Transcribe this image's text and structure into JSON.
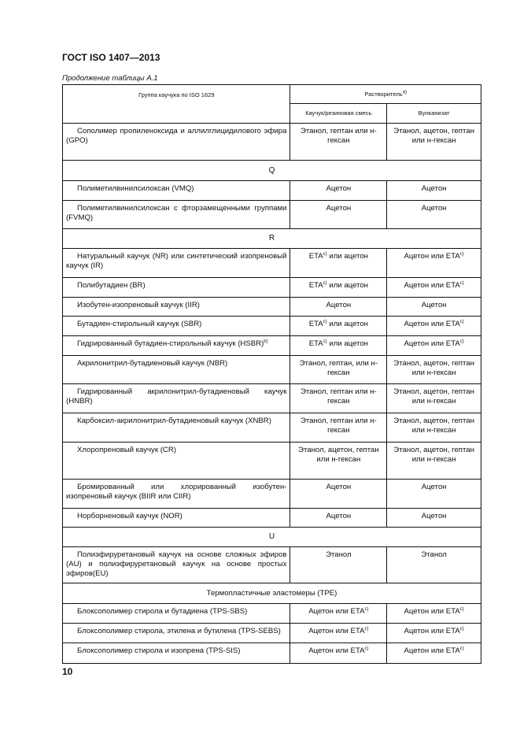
{
  "header": "ГОСТ ISO 1407—2013",
  "caption": "Продолжение таблицы А.1",
  "page_number": "10",
  "table": {
    "col_group": "Группа каучука по ISO 1629",
    "col_solvent": "Растворитель",
    "col_solvent_sup": "a)",
    "col_raw": "Каучук/резиновая смесь",
    "col_vulc": "Вулканизат",
    "rows": [
      {
        "type": "row",
        "h": 47,
        "name": "Сополимер пропиленоксида и аллилглицидилового эфира (GPO)",
        "a": {
          "pre": "Этанол, гептан или н-гексан"
        },
        "b": {
          "pre": "Этанол, ацетон, гептан или н-гексан"
        }
      },
      {
        "type": "group",
        "h": 26,
        "label": "Q"
      },
      {
        "type": "row",
        "h": 25,
        "name": "Полиметилвинилсилоксан (VMQ)",
        "a": {
          "pre": "Ацетон"
        },
        "b": {
          "pre": "Ацетон"
        }
      },
      {
        "type": "row",
        "h": 36,
        "name": "Полиметилвинилсилоксан с фторзамещенными группами (FVMQ)",
        "a": {
          "pre": "Ацетон"
        },
        "b": {
          "pre": "Ацетон"
        }
      },
      {
        "type": "group",
        "h": 25,
        "label": "R"
      },
      {
        "type": "row",
        "h": 37,
        "name": "Натуральный каучук (NR) или синтетический изопреновый каучук (IR)",
        "a": {
          "pre": "ETA",
          "sup": "c)",
          "post": " или ацетон"
        },
        "b": {
          "pre": "Ацетон или ETA",
          "sup": "c)"
        }
      },
      {
        "type": "row",
        "h": 25,
        "name": "Полибутадиен (BR)",
        "a": {
          "pre": "ETA",
          "sup": "c)",
          "post": " или ацетон"
        },
        "b": {
          "pre": "Ацетон или ETA",
          "sup": "c)"
        }
      },
      {
        "type": "row",
        "h": 24,
        "name": "Изобутен-изопреновый каучук (IIR)",
        "a": {
          "pre": "Ацетон"
        },
        "b": {
          "pre": "Ацетон"
        }
      },
      {
        "type": "row",
        "h": 25,
        "name": "Бутадиен-стирольный каучук (SBR)",
        "a": {
          "pre": "ETA",
          "sup": "c)",
          "post": " или ацетон"
        },
        "b": {
          "pre": "Ацетон или ETA",
          "sup": "c)"
        }
      },
      {
        "type": "row",
        "h": 25,
        "name": "Гидрированный бутадиен-стирольный каучук (HSBR)",
        "name_sup": "b)",
        "a": {
          "pre": "ETA",
          "sup": "c)",
          "post": " или ацетон"
        },
        "b": {
          "pre": "Ацетон или ETA",
          "sup": "c)"
        }
      },
      {
        "type": "row",
        "h": 36,
        "name": "Акрилонитрил-бутадиеновый каучук (NBR)",
        "a": {
          "pre": "Этанол, гептан, или н-гексан"
        },
        "b": {
          "pre": "Этанол, ацетон, гептан или н-гексан"
        }
      },
      {
        "type": "row",
        "h": 37,
        "name": "Гидрированный акрилонитрил-бутадиеновый каучук (HNBR)",
        "a": {
          "pre": "Этанол, гептан или н-гексан"
        },
        "b": {
          "pre": "Этанол, ацетон, гептан или н-гексан"
        }
      },
      {
        "type": "row",
        "h": 37,
        "name": "Карбоксил-акрилонитрил-бутадиеновый каучук (XNBR)",
        "a": {
          "pre": "Этанол, гептан или н-гексан"
        },
        "b": {
          "pre": "Этанол, ацетон, гептан или н-гексан"
        }
      },
      {
        "type": "row",
        "h": 47,
        "name": "Хлоропреновый каучук (CR)",
        "a": {
          "pre": "Этанол, ацетон, гептан или н-гексан"
        },
        "b": {
          "pre": "Этанол, ацетон, гептан или н-гексан"
        }
      },
      {
        "type": "row",
        "h": 37,
        "name": "Бромированный или хлорированный изобутен-изопреновый каучук (BIIR или CIIR)",
        "a": {
          "pre": "Ацетон"
        },
        "b": {
          "pre": "Ацетон"
        }
      },
      {
        "type": "row",
        "h": 24,
        "name": "Норборненовый каучук (NOR)",
        "a": {
          "pre": "Ацетон"
        },
        "b": {
          "pre": "Ацетон"
        }
      },
      {
        "type": "group",
        "h": 25,
        "label": "U"
      },
      {
        "type": "row",
        "h": 46,
        "name": "Полиэфируретановый каучук на основе сложных эфиров (AU) и полиэфируретановый каучук на основе простых эфиров(EU)",
        "a": {
          "pre": "Этанол"
        },
        "b": {
          "pre": "Этанол"
        }
      },
      {
        "type": "group",
        "h": 26,
        "label": "Термопластичные эластомеры (TPE)",
        "big": true
      },
      {
        "type": "row",
        "h": 25,
        "name": "Блоксополимер стирола и бутадиена (TPS-SBS)",
        "a": {
          "pre": "Ацетон или ETA",
          "sup": "c)"
        },
        "b": {
          "pre": "Ацетон или ETA",
          "sup": "c)"
        }
      },
      {
        "type": "row",
        "h": 25,
        "name": "Блоксополимер стирола, этилена и бутилена (TPS-SEBS)",
        "a": {
          "pre": "Ацетон или ETA",
          "sup": "c)"
        },
        "b": {
          "pre": "Ацетон или ETA",
          "sup": "c)"
        }
      },
      {
        "type": "row",
        "h": 26,
        "name": "Блоксополимер стирола и изопрена (TPS-SIS)",
        "a": {
          "pre": "Ацетон или ETA",
          "sup": "c)"
        },
        "b": {
          "pre": "Ацетон или ETA",
          "sup": "c)"
        }
      }
    ]
  }
}
